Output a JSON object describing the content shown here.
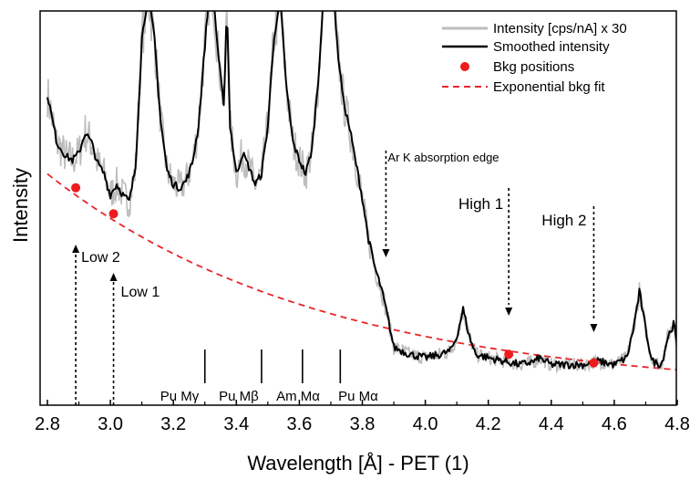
{
  "chart_data": {
    "type": "line",
    "xlabel": "Wavelength [Å] - PET (1)",
    "ylabel": "Intensity",
    "xlim": [
      2.8,
      4.81
    ],
    "ylim": [
      0,
      100
    ],
    "x_ticks": [
      "2.8",
      "3.0",
      "3.2",
      "3.4",
      "3.6",
      "3.8",
      "4.0",
      "4.2",
      "4.4",
      "4.6",
      "4.8"
    ],
    "x_tick_values": [
      2.8,
      3.0,
      3.2,
      3.4,
      3.6,
      3.8,
      4.0,
      4.2,
      4.4,
      4.6,
      4.8
    ],
    "y_ticks_shown": false,
    "grid": false,
    "legend_position": "top-right",
    "legend": [
      {
        "label": "Intensity [cps/nA] x 30",
        "kind": "line",
        "color": "#bdbdbd"
      },
      {
        "label": "Smoothed intensity",
        "kind": "line",
        "color": "#000000"
      },
      {
        "label": "Bkg positions",
        "kind": "marker",
        "color": "#ee1c1c"
      },
      {
        "label": "Exponential bkg fit",
        "kind": "dashed",
        "color": "#e8262b"
      }
    ],
    "series": [
      {
        "name": "Smoothed intensity",
        "color": "#000000",
        "x": [
          2.8,
          2.83,
          2.86,
          2.88,
          2.9,
          2.92,
          2.94,
          2.96,
          2.98,
          3.0,
          3.02,
          3.04,
          3.06,
          3.08,
          3.1,
          3.12,
          3.14,
          3.16,
          3.18,
          3.2,
          3.22,
          3.24,
          3.26,
          3.28,
          3.3,
          3.32,
          3.34,
          3.36,
          3.37,
          3.38,
          3.4,
          3.42,
          3.44,
          3.46,
          3.48,
          3.5,
          3.52,
          3.54,
          3.56,
          3.58,
          3.6,
          3.62,
          3.64,
          3.66,
          3.68,
          3.7,
          3.72,
          3.74,
          3.76,
          3.78,
          3.8,
          3.82,
          3.84,
          3.86,
          3.88,
          3.9,
          3.95,
          4.0,
          4.05,
          4.08,
          4.1,
          4.12,
          4.14,
          4.16,
          4.2,
          4.25,
          4.3,
          4.35,
          4.36,
          4.38,
          4.4,
          4.45,
          4.5,
          4.55,
          4.6,
          4.64,
          4.66,
          4.68,
          4.7,
          4.72,
          4.75,
          4.77,
          4.79,
          4.81
        ],
        "y": [
          86,
          72,
          68,
          67,
          69,
          75,
          72,
          66,
          63,
          57,
          60,
          57,
          55,
          65,
          102,
          115,
          102,
          78,
          64,
          60,
          59,
          61,
          66,
          77,
          100,
          122,
          100,
          82,
          112,
          77,
          63,
          69,
          65,
          60,
          63,
          77,
          103,
          112,
          87,
          72,
          67,
          63,
          70,
          90,
          119,
          128,
          100,
          84,
          76,
          66,
          56,
          44,
          36,
          30,
          22,
          13,
          11,
          10,
          11,
          12,
          16,
          24,
          16,
          11,
          10,
          9,
          8,
          9,
          10,
          9,
          8,
          8,
          8,
          9,
          8,
          10,
          18,
          29,
          18,
          9,
          8,
          16,
          20,
          5
        ]
      },
      {
        "name": "Exponential bkg fit",
        "color": "#e8262b",
        "x": [
          2.8,
          3.0,
          3.2,
          3.4,
          3.6,
          3.8,
          4.0,
          4.2,
          4.4,
          4.6,
          4.8
        ],
        "y": [
          63,
          52,
          43,
          35,
          28,
          21.5,
          16.5,
          13,
          10,
          8,
          6.5
        ]
      }
    ],
    "bkg_positions": {
      "name": "Bkg positions",
      "color": "#ee1c1c",
      "x": [
        2.89,
        3.01,
        4.265,
        4.535
      ],
      "y": [
        59,
        51.5,
        11,
        8.5
      ]
    },
    "annotations": {
      "arrows": [
        {
          "label": "Low 2",
          "x": 2.89,
          "direction": "up"
        },
        {
          "label": "Low 1",
          "x": 3.01,
          "direction": "up"
        },
        {
          "label": "Ar K absorption edge",
          "x": 3.875,
          "direction": "down"
        },
        {
          "label": "High 1",
          "x": 4.265,
          "direction": "down"
        },
        {
          "label": "High 2",
          "x": 4.535,
          "direction": "down"
        }
      ],
      "lines": [
        {
          "label": "Pu Mγ",
          "x": 3.3
        },
        {
          "label": "Pu Mβ",
          "x": 3.48
        },
        {
          "label": "Am Mα",
          "x": 3.61
        },
        {
          "label": "Pu Mα",
          "x": 3.73
        }
      ]
    }
  }
}
